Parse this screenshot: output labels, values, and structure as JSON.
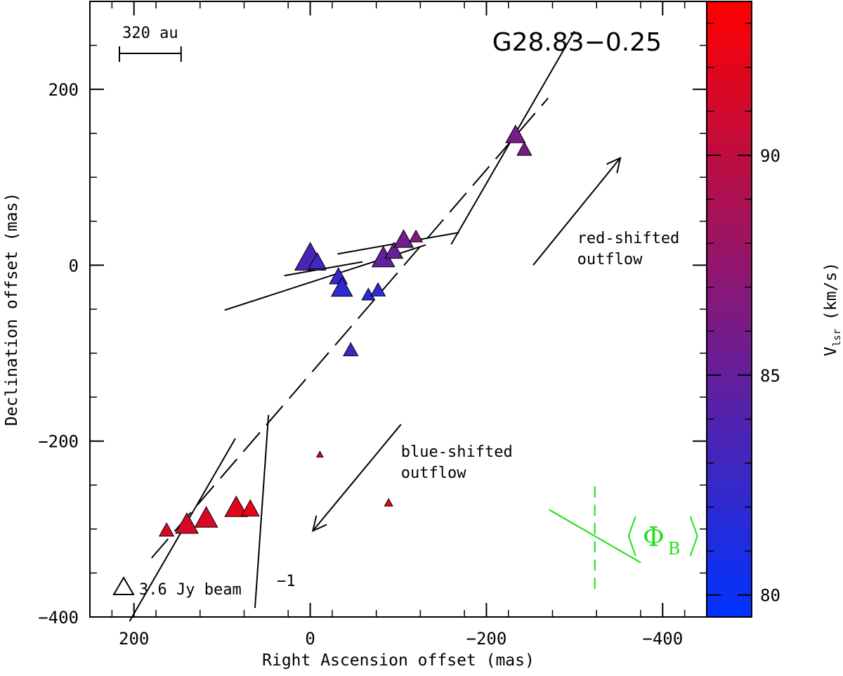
{
  "chart_data": {
    "type": "scatter",
    "title": "G28.83−0.25",
    "xlabel": "Right Ascension offset (mas)",
    "ylabel": "Declination offset (mas)",
    "xlim": [
      250,
      -450
    ],
    "ylim": [
      -400,
      300
    ],
    "x_ticks": [
      200,
      0,
      -200,
      -400
    ],
    "x_tick_labels": [
      "200",
      "0",
      "−200",
      "−400"
    ],
    "y_ticks": [
      200,
      0,
      -200,
      -400
    ],
    "y_tick_labels": [
      "200",
      "0",
      "−200",
      "−400"
    ],
    "colorbar": {
      "label_main": "V",
      "label_sub": "lsr",
      "label_unit": "(km/s)",
      "range": [
        79.5,
        93.5
      ],
      "ticks": [
        80,
        85,
        90
      ],
      "colors": [
        "#0033ff",
        "#ff0000"
      ]
    },
    "scale_bar": {
      "label": "320 au",
      "length_mas": 70
    },
    "size_legend": {
      "label": "3.6 Jy beam",
      "sup": "−1"
    },
    "points": [
      {
        "x": 0,
        "y": 5,
        "v": 83.5,
        "s": 38
      },
      {
        "x": -8,
        "y": 2,
        "v": 83.2,
        "s": 22
      },
      {
        "x": -32,
        "y": -15,
        "v": 82.5,
        "s": 22
      },
      {
        "x": -36,
        "y": -28,
        "v": 82.0,
        "s": 26
      },
      {
        "x": -46,
        "y": -98,
        "v": 83.0,
        "s": 18
      },
      {
        "x": -66,
        "y": -35,
        "v": 81.5,
        "s": 16
      },
      {
        "x": -77,
        "y": -30,
        "v": 81.8,
        "s": 18
      },
      {
        "x": -83,
        "y": 6,
        "v": 85.0,
        "s": 28
      },
      {
        "x": -95,
        "y": 14,
        "v": 85.3,
        "s": 22
      },
      {
        "x": -106,
        "y": 27,
        "v": 85.8,
        "s": 24
      },
      {
        "x": -120,
        "y": 31,
        "v": 86.5,
        "s": 16
      },
      {
        "x": -233,
        "y": 146,
        "v": 86.0,
        "s": 24
      },
      {
        "x": -243,
        "y": 130,
        "v": 86.2,
        "s": 18
      },
      {
        "x": -11,
        "y": -216,
        "v": 93.0,
        "s": 8
      },
      {
        "x": -89,
        "y": -271,
        "v": 92.8,
        "s": 10
      },
      {
        "x": 163,
        "y": -303,
        "v": 91.5,
        "s": 18
      },
      {
        "x": 140,
        "y": -297,
        "v": 91.3,
        "s": 28
      },
      {
        "x": 118,
        "y": -290,
        "v": 91.5,
        "s": 28
      },
      {
        "x": 84,
        "y": -278,
        "v": 92.0,
        "s": 28
      },
      {
        "x": 68,
        "y": -279,
        "v": 92.3,
        "s": 22
      }
    ],
    "vectors": [
      {
        "cx": -17,
        "cy": -14,
        "angle": 72,
        "len": 240
      },
      {
        "cx": -15,
        "cy": -4,
        "angle": 80,
        "len": 90
      },
      {
        "cx": -100,
        "cy": 25,
        "angle": 80,
        "len": 140
      },
      {
        "cx": -230,
        "cy": 145,
        "angle": 30,
        "len": 280
      },
      {
        "cx": 145,
        "cy": -301,
        "angle": 30,
        "len": 240
      },
      {
        "cx": 55,
        "cy": -280,
        "angle": 4,
        "len": 220
      }
    ],
    "outflow_axis": {
      "from": [
        180,
        -333
      ],
      "to": [
        -270,
        190
      ]
    },
    "arrows": [
      {
        "label": [
          "red-shifted",
          "outflow"
        ],
        "from": [
          -253,
          0
        ],
        "to": [
          -352,
          122
        ],
        "text_at": [
          -303,
          25
        ]
      },
      {
        "label": [
          "blue-shifted",
          "outflow"
        ],
        "from": [
          -103,
          -181
        ],
        "to": [
          -3,
          -302
        ],
        "text_at": [
          -103,
          -218
        ]
      }
    ],
    "mean_field": {
      "label": "Φ",
      "sub": "B",
      "center": [
        -323,
        -308
      ],
      "angle": 30,
      "len": 120
    }
  }
}
